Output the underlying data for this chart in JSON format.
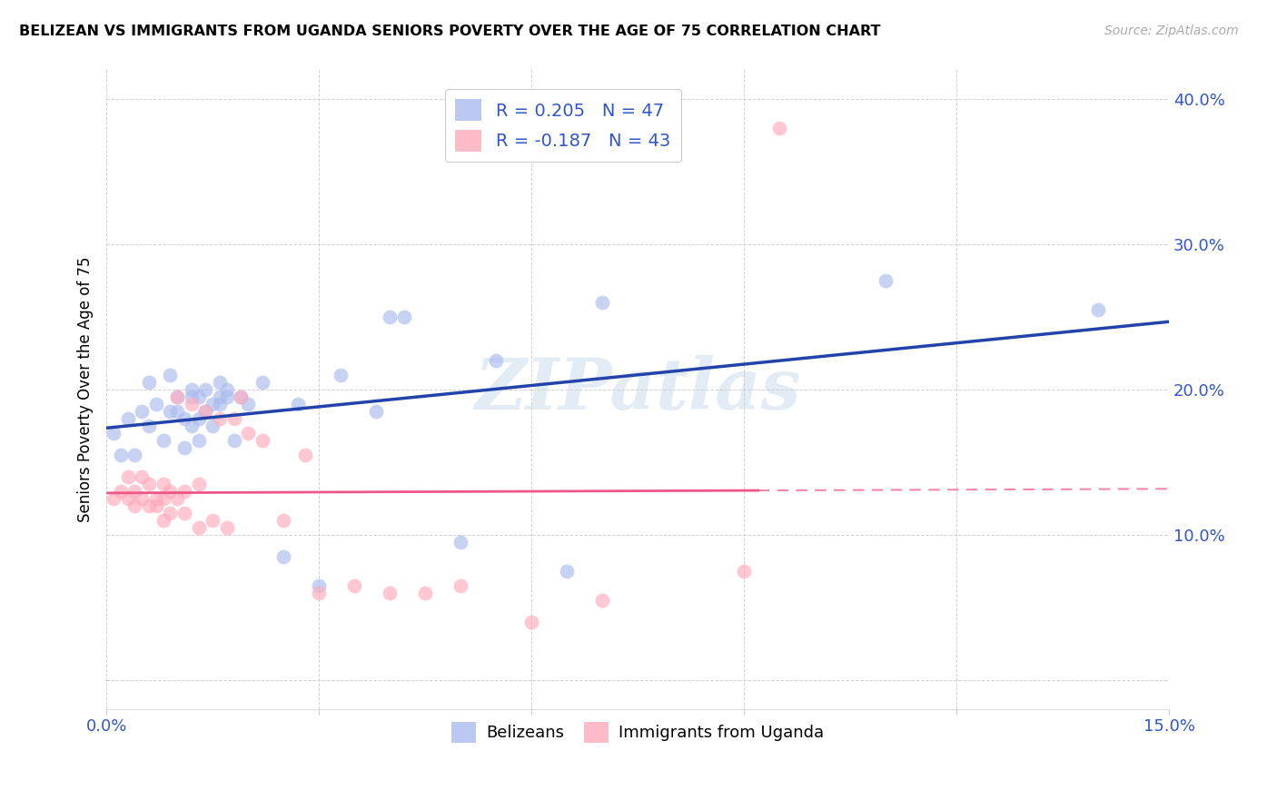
{
  "title": "BELIZEAN VS IMMIGRANTS FROM UGANDA SENIORS POVERTY OVER THE AGE OF 75 CORRELATION CHART",
  "source": "Source: ZipAtlas.com",
  "ylabel": "Seniors Poverty Over the Age of 75",
  "xlim": [
    0.0,
    0.15
  ],
  "ylim": [
    -0.02,
    0.42
  ],
  "belizean_color": "#aabbee",
  "uganda_color": "#ffaabb",
  "belizean_line_color": "#2244aa",
  "uganda_line_color": "#ee5588",
  "belizean_R": 0.205,
  "belizean_N": 47,
  "uganda_R": -0.187,
  "uganda_N": 43,
  "legend_R_color": "#3355cc",
  "tick_color": "#3355cc",
  "watermark": "ZIPatlas",
  "belizean_x": [
    0.001,
    0.002,
    0.003,
    0.004,
    0.005,
    0.006,
    0.006,
    0.007,
    0.008,
    0.009,
    0.009,
    0.01,
    0.01,
    0.011,
    0.011,
    0.012,
    0.012,
    0.012,
    0.013,
    0.013,
    0.013,
    0.014,
    0.014,
    0.015,
    0.015,
    0.016,
    0.016,
    0.016,
    0.017,
    0.017,
    0.018,
    0.019,
    0.02,
    0.022,
    0.025,
    0.027,
    0.03,
    0.033,
    0.038,
    0.04,
    0.042,
    0.05,
    0.055,
    0.065,
    0.07,
    0.11,
    0.14
  ],
  "belizean_y": [
    0.17,
    0.155,
    0.18,
    0.155,
    0.185,
    0.175,
    0.205,
    0.19,
    0.165,
    0.185,
    0.21,
    0.185,
    0.195,
    0.16,
    0.18,
    0.175,
    0.195,
    0.2,
    0.165,
    0.18,
    0.195,
    0.185,
    0.2,
    0.175,
    0.19,
    0.19,
    0.195,
    0.205,
    0.195,
    0.2,
    0.165,
    0.195,
    0.19,
    0.205,
    0.085,
    0.19,
    0.065,
    0.21,
    0.185,
    0.25,
    0.25,
    0.095,
    0.22,
    0.075,
    0.26,
    0.275,
    0.255
  ],
  "uganda_x": [
    0.001,
    0.002,
    0.003,
    0.003,
    0.004,
    0.004,
    0.005,
    0.005,
    0.006,
    0.006,
    0.007,
    0.007,
    0.008,
    0.008,
    0.008,
    0.009,
    0.009,
    0.01,
    0.01,
    0.011,
    0.011,
    0.012,
    0.013,
    0.013,
    0.014,
    0.015,
    0.016,
    0.017,
    0.018,
    0.019,
    0.02,
    0.022,
    0.025,
    0.028,
    0.03,
    0.035,
    0.04,
    0.045,
    0.05,
    0.06,
    0.07,
    0.09,
    0.095
  ],
  "uganda_y": [
    0.125,
    0.13,
    0.125,
    0.14,
    0.12,
    0.13,
    0.125,
    0.14,
    0.12,
    0.135,
    0.12,
    0.125,
    0.11,
    0.125,
    0.135,
    0.115,
    0.13,
    0.125,
    0.195,
    0.115,
    0.13,
    0.19,
    0.105,
    0.135,
    0.185,
    0.11,
    0.18,
    0.105,
    0.18,
    0.195,
    0.17,
    0.165,
    0.11,
    0.155,
    0.06,
    0.065,
    0.06,
    0.06,
    0.065,
    0.04,
    0.055,
    0.075,
    0.38
  ]
}
